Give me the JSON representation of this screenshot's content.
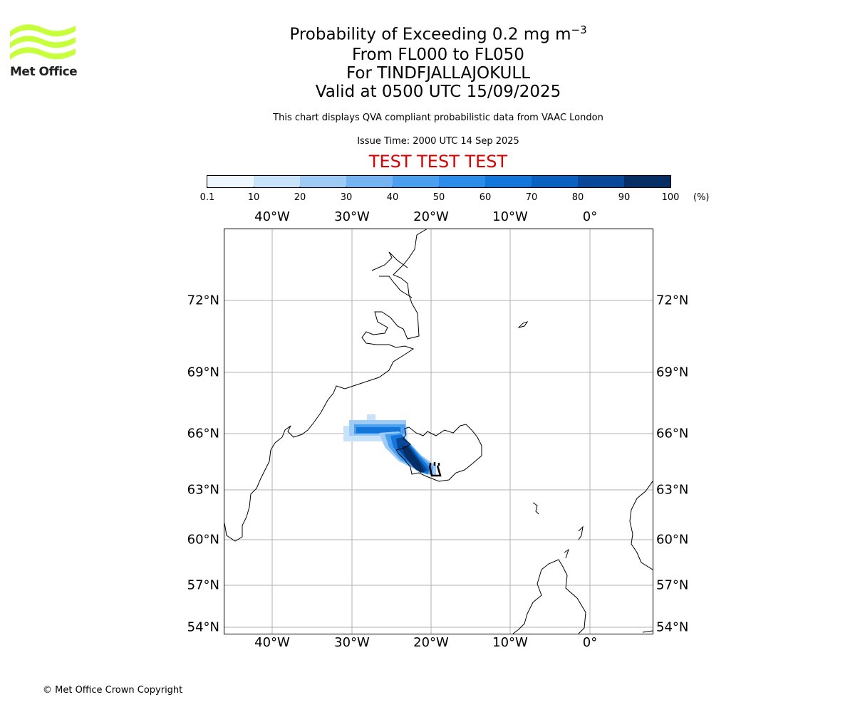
{
  "logo": {
    "text": "Met Office",
    "wave_color": "#c8ff3c"
  },
  "title": {
    "main_prefix": "Probability of Exceeding 0.2 mg m",
    "main_exponent": "−3",
    "line2": "From FL000 to FL050",
    "line3": "For TINDFJALLAJOKULL",
    "line4": "Valid at 0500 UTC 15/09/2025"
  },
  "subtitle": "This chart displays QVA compliant probabilistic data from VAAC London",
  "issue_time": "Issue Time: 2000 UTC 14 Sep 2025",
  "test_banner": {
    "text": "TEST TEST TEST",
    "color": "#dd0000"
  },
  "colorbar": {
    "ticks": [
      "0.1",
      "10",
      "20",
      "30",
      "40",
      "50",
      "60",
      "70",
      "80",
      "90",
      "100"
    ],
    "unit": "(%)",
    "colors": [
      "#eef6ff",
      "#c8e2fa",
      "#9ecbf6",
      "#74b4f2",
      "#4aa0ef",
      "#2c8ce9",
      "#1276da",
      "#0a60c0",
      "#08489a",
      "#062e64"
    ]
  },
  "map": {
    "lon_labels": [
      "40°W",
      "30°W",
      "20°W",
      "10°W",
      "0°"
    ],
    "lat_labels": [
      "72°N",
      "69°N",
      "66°N",
      "63°N",
      "60°N",
      "57°N",
      "54°N"
    ],
    "grid_color": "#b0b0b0",
    "plume_area": "south-west Iceland, extending west-north-west over the Denmark Strait",
    "volcano_marker_icon": "volcano-icon"
  },
  "copyright": "© Met Office Crown Copyright"
}
